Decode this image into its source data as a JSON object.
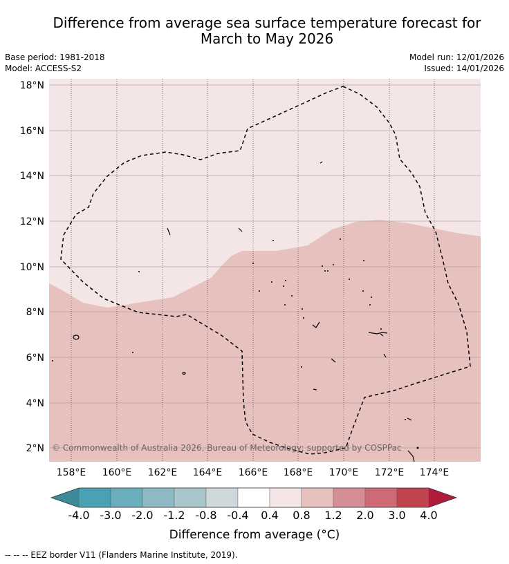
{
  "title_line1": "Difference from average sea surface temperature forecast for",
  "title_line2": "March to May 2026",
  "base_period": "Base period: 1981-2018",
  "model": "Model: ACCESS-S2",
  "model_run": "Model run: 12/01/2026",
  "issued": "Issued: 14/01/2026",
  "copyright": "© Commonwealth of Australia 2026, Bureau of Meteorology; supported by COSPPac",
  "footer": "--  --  -- EEZ border V11 (Flanders Marine Institute, 2019).",
  "colorbar": {
    "title": "Difference from average (°C)",
    "tick_labels": [
      "-4.0",
      "-3.0",
      "-2.0",
      "-1.2",
      "-0.8",
      "-0.4",
      "0.4",
      "0.8",
      "1.2",
      "2.0",
      "3.0",
      "4.0"
    ],
    "colors": [
      "#3d8a99",
      "#4aa1b3",
      "#6aadbc",
      "#8cb9c4",
      "#a9c6ca",
      "#cfd9db",
      "#ffffff",
      "#f4e6e6",
      "#e6c1bd",
      "#d68e96",
      "#cd6a76",
      "#c0454f",
      "#b01c3c"
    ]
  },
  "map": {
    "x_ticks": [
      "158°E",
      "160°E",
      "162°E",
      "164°E",
      "166°E",
      "168°E",
      "170°E",
      "172°E",
      "174°E"
    ],
    "y_ticks": [
      "18°N",
      "16°N",
      "14°N",
      "12°N",
      "10°N",
      "8°N",
      "6°N",
      "4°N",
      "2°N"
    ],
    "anomaly_fill_north": "#f4e6e6",
    "anomaly_fill_south": "#e6c1bd"
  }
}
